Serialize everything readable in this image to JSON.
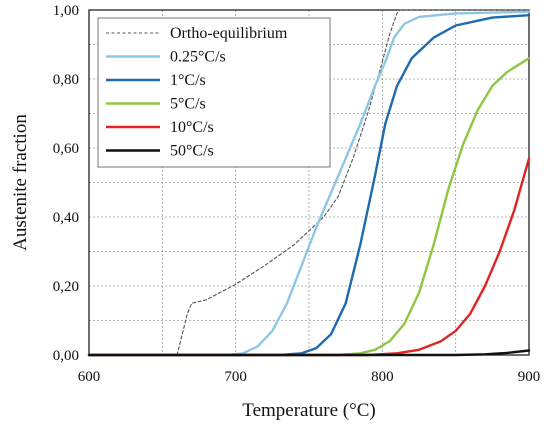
{
  "chart_data": {
    "type": "line",
    "xlabel": "Temperature (°C)",
    "ylabel": "Austenite fraction",
    "xlim": [
      600,
      900
    ],
    "ylim": [
      0,
      1
    ],
    "x_ticks": [
      "600",
      "700",
      "800",
      "900"
    ],
    "x_tick_values": [
      600,
      700,
      800,
      900
    ],
    "y_ticks": [
      "0,00",
      "0,20",
      "0,40",
      "0,60",
      "0,80",
      "1,00"
    ],
    "y_tick_values": [
      0,
      0.2,
      0.4,
      0.6,
      0.8,
      1.0
    ],
    "grid": true,
    "legend_position": "top-left",
    "series": [
      {
        "name": "Ortho-equilibrium",
        "color": "#555555",
        "dash": true,
        "points": [
          [
            600,
            0
          ],
          [
            660,
            0
          ],
          [
            663,
            0.05
          ],
          [
            667,
            0.12
          ],
          [
            670,
            0.15
          ],
          [
            680,
            0.16
          ],
          [
            700,
            0.205
          ],
          [
            720,
            0.26
          ],
          [
            740,
            0.32
          ],
          [
            760,
            0.4
          ],
          [
            770,
            0.46
          ],
          [
            780,
            0.57
          ],
          [
            790,
            0.7
          ],
          [
            800,
            0.85
          ],
          [
            805,
            0.93
          ],
          [
            810,
            0.99
          ],
          [
            812,
            1.0
          ],
          [
            900,
            1.0
          ]
        ]
      },
      {
        "name": "0.25°C/s",
        "color": "#8ec7e3",
        "dash": false,
        "points": [
          [
            600,
            0
          ],
          [
            695,
            0
          ],
          [
            705,
            0.005
          ],
          [
            715,
            0.025
          ],
          [
            725,
            0.07
          ],
          [
            735,
            0.15
          ],
          [
            745,
            0.26
          ],
          [
            755,
            0.37
          ],
          [
            765,
            0.47
          ],
          [
            775,
            0.57
          ],
          [
            785,
            0.67
          ],
          [
            795,
            0.78
          ],
          [
            802,
            0.85
          ],
          [
            808,
            0.92
          ],
          [
            815,
            0.96
          ],
          [
            825,
            0.98
          ],
          [
            850,
            0.99
          ],
          [
            900,
            0.995
          ]
        ]
      },
      {
        "name": "1°C/s",
        "color": "#1f6aad",
        "dash": false,
        "points": [
          [
            600,
            0
          ],
          [
            730,
            0
          ],
          [
            745,
            0.005
          ],
          [
            755,
            0.02
          ],
          [
            765,
            0.06
          ],
          [
            775,
            0.15
          ],
          [
            785,
            0.32
          ],
          [
            795,
            0.52
          ],
          [
            802,
            0.67
          ],
          [
            810,
            0.78
          ],
          [
            820,
            0.86
          ],
          [
            835,
            0.92
          ],
          [
            850,
            0.955
          ],
          [
            875,
            0.978
          ],
          [
            900,
            0.985
          ]
        ]
      },
      {
        "name": "5°C/s",
        "color": "#8fc642",
        "dash": false,
        "points": [
          [
            600,
            0
          ],
          [
            770,
            0
          ],
          [
            785,
            0.005
          ],
          [
            795,
            0.015
          ],
          [
            805,
            0.04
          ],
          [
            815,
            0.09
          ],
          [
            825,
            0.18
          ],
          [
            835,
            0.32
          ],
          [
            845,
            0.48
          ],
          [
            855,
            0.61
          ],
          [
            865,
            0.71
          ],
          [
            875,
            0.78
          ],
          [
            885,
            0.82
          ],
          [
            900,
            0.86
          ]
        ]
      },
      {
        "name": "10°C/s",
        "color": "#e02424",
        "dash": false,
        "points": [
          [
            600,
            0
          ],
          [
            790,
            0
          ],
          [
            810,
            0.005
          ],
          [
            825,
            0.015
          ],
          [
            840,
            0.04
          ],
          [
            850,
            0.07
          ],
          [
            860,
            0.12
          ],
          [
            870,
            0.2
          ],
          [
            880,
            0.3
          ],
          [
            890,
            0.42
          ],
          [
            900,
            0.57
          ]
        ]
      },
      {
        "name": "50°C/s",
        "color": "#111111",
        "dash": false,
        "points": [
          [
            600,
            0
          ],
          [
            850,
            0
          ],
          [
            870,
            0.002
          ],
          [
            885,
            0.006
          ],
          [
            900,
            0.013
          ]
        ]
      }
    ]
  }
}
